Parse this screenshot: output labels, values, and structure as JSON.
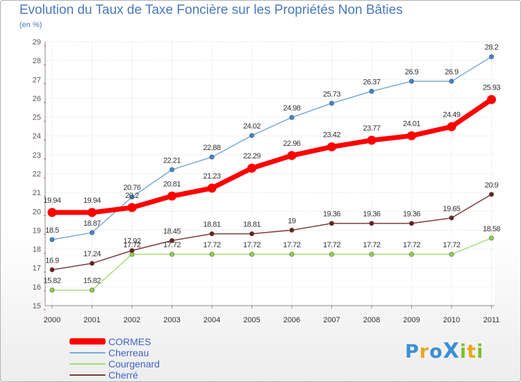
{
  "header": {
    "title": "Evolution du Taux de Taxe Foncière sur les Propriétés Non Bâties",
    "unit": "(en %)"
  },
  "logo": {
    "text": "ProXiti",
    "letters": [
      {
        "char": "P",
        "color": "#3b8fd4"
      },
      {
        "char": "r",
        "color": "#e8a61c"
      },
      {
        "char": "o",
        "color": "#3b8fd4"
      },
      {
        "char": "X",
        "color": "#3b8fd4"
      },
      {
        "char": "i",
        "color": "#7cbf2e"
      },
      {
        "char": "t",
        "color": "#e8a61c"
      },
      {
        "char": "i",
        "color": "#7cbf2e"
      }
    ]
  },
  "chart_data": {
    "type": "line",
    "title": "Evolution du Taux de Taxe Foncière sur les Propriétés Non Bâties",
    "ylabel": "(en %)",
    "xlabel": "",
    "x": [
      "2000",
      "2001",
      "2002",
      "2003",
      "2004",
      "2005",
      "2006",
      "2007",
      "2008",
      "2009",
      "2010",
      "2011"
    ],
    "ylim": [
      15,
      29
    ],
    "yticks": [
      15,
      16,
      17,
      18,
      19,
      20,
      21,
      22,
      23,
      24,
      25,
      26,
      27,
      28,
      29
    ],
    "grid": true,
    "legend_position": "bottom-left",
    "series": [
      {
        "name": "CORMES",
        "color": "#ff0000",
        "values": [
          19.94,
          19.94,
          20.2,
          20.81,
          21.23,
          22.29,
          22.96,
          23.42,
          23.77,
          24.01,
          24.49,
          25.93
        ],
        "labels": [
          "19.94",
          "19.94",
          "20.2",
          "20.81",
          "21.23",
          "22.29",
          "22.96",
          "23.42",
          "23.77",
          "24.01",
          "24.49",
          "25.93"
        ]
      },
      {
        "name": "Cherreau",
        "color": "#7aaad6",
        "marker": "#3b87cf",
        "values": [
          18.5,
          18.87,
          20.76,
          22.21,
          22.88,
          24.02,
          24.98,
          25.73,
          26.37,
          26.9,
          26.9,
          28.2
        ],
        "labels": [
          "18.5",
          "18.87",
          "20.76",
          "22.21",
          "22.88",
          "24.02",
          "24.98",
          "25.73",
          "26.37",
          "26.9",
          "26.9",
          "28.2"
        ]
      },
      {
        "name": "Courgenard",
        "color": "#a8dc7a",
        "marker": "#8fd14f",
        "values": [
          15.82,
          15.82,
          17.72,
          17.72,
          17.72,
          17.72,
          17.72,
          17.72,
          17.72,
          17.72,
          17.72,
          18.58
        ],
        "labels": [
          "15.82",
          "15.82",
          "17.72",
          "17.72",
          "17.72",
          "17.72",
          "17.72",
          "17.72",
          "17.72",
          "17.72",
          "17.72",
          "18.58"
        ]
      },
      {
        "name": "Cherré",
        "color": "#7a3a3a",
        "marker": "#6b1f1f",
        "values": [
          16.9,
          17.24,
          17.92,
          18.45,
          18.81,
          18.81,
          19,
          19.36,
          19.36,
          19.36,
          19.65,
          20.9
        ],
        "labels": [
          "16.9",
          "17.24",
          "17.92",
          "18.45",
          "18.81",
          "18.81",
          "19",
          "19.36",
          "19.36",
          "19.36",
          "19.65",
          "20.9"
        ]
      }
    ]
  }
}
